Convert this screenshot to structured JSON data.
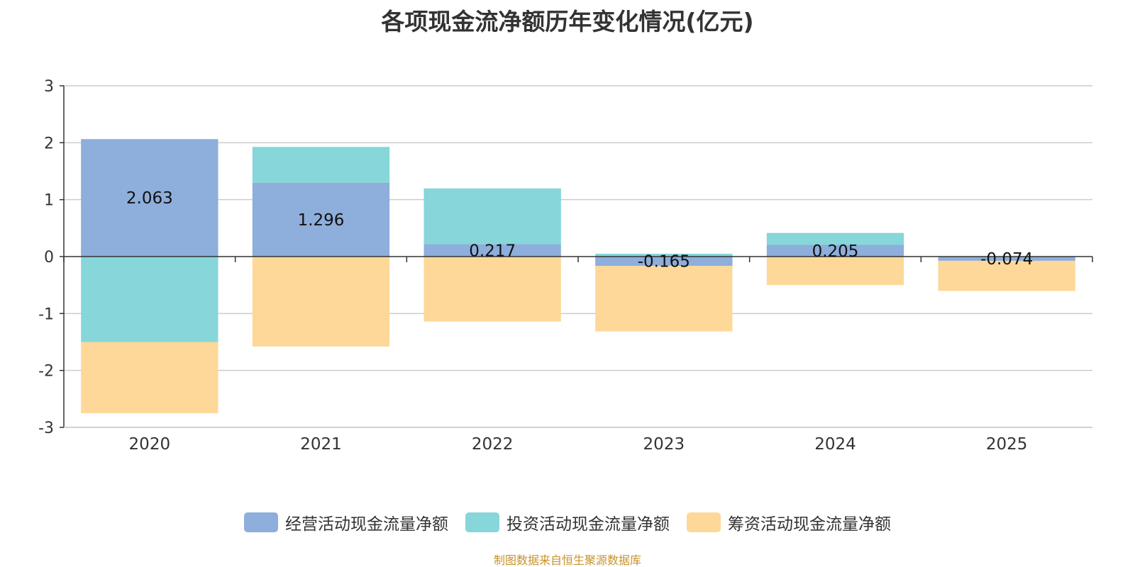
{
  "chart_data": {
    "type": "bar",
    "stacked": true,
    "title": "各项现金流净额历年变化情况(亿元)",
    "categories": [
      "2020",
      "2021",
      "2022",
      "2023",
      "2024",
      "2025"
    ],
    "ylim": [
      -3,
      3
    ],
    "yticks": [
      3,
      2,
      1,
      0,
      -1,
      -2,
      -3
    ],
    "grid": true,
    "legend_position": "bottom",
    "series": [
      {
        "name": "经营活动现金流量净额",
        "color": "#8eaedb",
        "values": [
          2.063,
          1.296,
          0.217,
          -0.165,
          0.205,
          -0.074
        ],
        "labels": [
          "2.063",
          "1.296",
          "0.217",
          "-0.165",
          "0.205",
          "-0.074"
        ]
      },
      {
        "name": "投资活动现金流量净额",
        "color": "#86d6da",
        "values": [
          -1.5,
          0.63,
          0.98,
          0.05,
          0.21,
          0.0
        ]
      },
      {
        "name": "筹资活动现金流量净额",
        "color": "#fed898",
        "values": [
          -1.25,
          -1.58,
          -1.14,
          -1.15,
          -0.5,
          -0.53
        ]
      }
    ],
    "source": "制图数据来自恒生聚源数据库"
  }
}
